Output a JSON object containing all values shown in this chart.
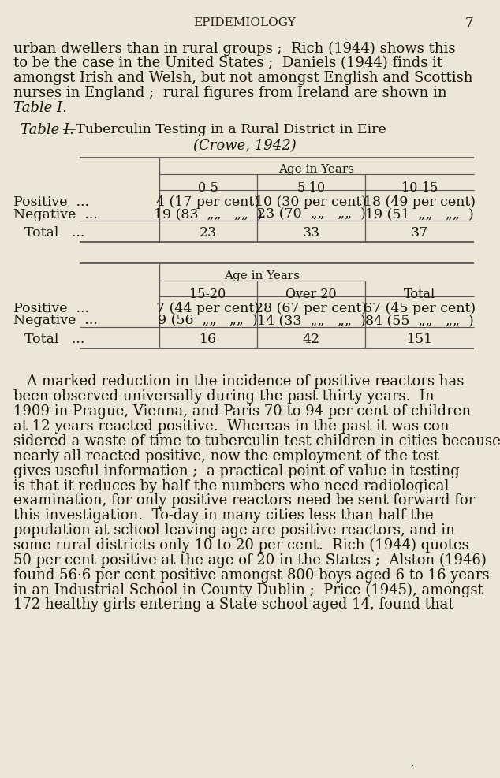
{
  "bg_color": "#ede5d5",
  "text_color": "#1a1208",
  "header_text": "EPIDEMIOLOGY",
  "page_number": "7",
  "intro_lines": [
    "urban dwellers than in rural groups ;  Rich (1944) shows this",
    "to be the case in the United States ;  Daniels (1944) finds it",
    "amongst Irish and Welsh, but not amongst English and Scottish",
    "nurses in England ;  rural figures from Ireland are shown in",
    "Table I."
  ],
  "table_title_line1_italic": "Table I.",
  "table_title_line1_main": "—TᴟBERCULIN TᴇSTING IN A RᴟRAL DɪˢᴛRICT IN EɪRᴇ",
  "table_title_line1_main_plain": "—Tuberculin Testing in a Rural District in Eire",
  "table_title_line2": "(Crowe, 1942)",
  "table1_age_header": "Aɢᴇ ɪn YᴇARᴀ",
  "table1_col_headers": [
    "0-5",
    "5-10",
    "10-15"
  ],
  "table1_row1_label": "Positive  ...",
  "table1_row2_label": "Negative  ...",
  "table1_row3_label": "Total   ...",
  "table1_row1_vals": [
    "4 (17 per cent)",
    "10 (30 per cent)",
    "18 (49 per cent)"
  ],
  "table1_row2_vals": [
    "19 (83  „„   „„  )",
    "23 (70  „„   „„  )",
    "19 (51  „„   „„  )"
  ],
  "table1_row3_vals": [
    "23",
    "33",
    "37"
  ],
  "table2_age_header": "Aɢᴇ ɪn YᴇARᴀ",
  "table2_col_headers": [
    "15-20",
    "Over 20",
    "TᴏᴛAL"
  ],
  "table2_col_headers_plain": [
    "15-20",
    "Over 20",
    "Total"
  ],
  "table2_row1_label": "Positive  ...",
  "table2_row2_label": "Negative  ...",
  "table2_row3_label": "Total   ...",
  "table2_row1_vals": [
    "7 (44 per cent)",
    "28 (67 per cent)",
    "67 (45 per cent)"
  ],
  "table2_row2_vals": [
    "9 (56  „„   „„  )",
    "14 (33  „„   „„  )",
    "84 (55  „„   „„  )"
  ],
  "table2_row3_vals": [
    "16",
    "42",
    "151"
  ],
  "body_lines": [
    "   A marked reduction in the incidence of positive reactors has",
    "been observed universally during the past thirty years.  In",
    "1909 in Prague, Vienna, and Paris 70 to 94 per cent of children",
    "at 12 years reacted positive.  Whereas in the past it was con-",
    "sidered a waste of time to tuberculin test children in cities because",
    "nearly all reacted positive, now the employment of the test",
    "gives useful information ;  a practical point of value in testing",
    "is that it reduces by half the numbers who need radiological",
    "examination, for only positive reactors need be sent forward for",
    "this investigation.  To-day in many cities less than half the",
    "population at school-leaving age are positive reactors, and in",
    "some rural districts only 10 to 20 per cent.  Rich (1944) quotes",
    "50 per cent positive at the age of 20 in the States ;  Alston (1946)",
    "found 56·6 per cent positive amongst 800 boys aged 6 to 16 years",
    "in an Industrial School in County Dublin ;  Price (1945), amongst",
    "172 healthy girls entering a State school aged 14, found that"
  ]
}
